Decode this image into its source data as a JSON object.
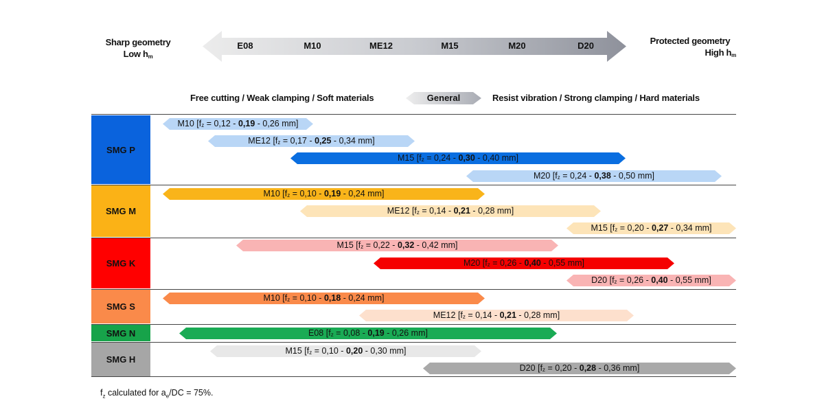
{
  "scale": {
    "left_label": [
      "Sharp geometry",
      "Low h",
      "m"
    ],
    "right_label": [
      "Protected geometry",
      "High h",
      "m"
    ],
    "geometries": [
      "E08",
      "M10",
      "ME12",
      "M15",
      "M20",
      "D20"
    ]
  },
  "application": {
    "left": "Free cutting / Weak clamping / Soft materials",
    "center": "General",
    "right": "Resist vibration / Strong clamping / Hard materials"
  },
  "groups": [
    {
      "label": "SMG P",
      "color": "#0a63dd",
      "bars": [
        {
          "name": "M10",
          "min": "0,12",
          "rec": "0,19",
          "max": "0,26",
          "color": "#b9d6f6"
        },
        {
          "name": "ME12",
          "min": "0,17",
          "rec": "0,25",
          "max": "0,34",
          "color": "#b9d6f6"
        },
        {
          "name": "M15",
          "min": "0,24",
          "rec": "0,30",
          "max": "0,40",
          "color": "#0a6ee0"
        },
        {
          "name": "M20",
          "min": "0,24",
          "rec": "0,38",
          "max": "0,50",
          "color": "#b9d6f6"
        }
      ]
    },
    {
      "label": "SMG M",
      "color": "#fbb216",
      "bars": [
        {
          "name": "M10",
          "min": "0,10",
          "rec": "0,19",
          "max": "0,24",
          "color": "#f9b41a"
        },
        {
          "name": "ME12",
          "min": "0,14",
          "rec": "0,21",
          "max": "0,28",
          "color": "#fde4b8"
        },
        {
          "name": "M15",
          "min": "0,20",
          "rec": "0,27",
          "max": "0,34",
          "color": "#fde4b8"
        }
      ]
    },
    {
      "label": "SMG K",
      "color": "#ff0000",
      "bars": [
        {
          "name": "M15",
          "min": "0,22",
          "rec": "0,32",
          "max": "0,42",
          "color": "#f9b4b4"
        },
        {
          "name": "M20",
          "min": "0,26",
          "rec": "0,40",
          "max": "0,55",
          "color": "#f50000"
        },
        {
          "name": "D20",
          "min": "0,26",
          "rec": "0,40",
          "max": "0,55",
          "color": "#f9b4b4"
        }
      ]
    },
    {
      "label": "SMG S",
      "color": "#fa8a4a",
      "bars": [
        {
          "name": "M10",
          "min": "0,10",
          "rec": "0,18",
          "max": "0,24",
          "color": "#fa8a4a"
        },
        {
          "name": "ME12",
          "min": "0,14",
          "rec": "0,21",
          "max": "0,28",
          "color": "#fde0cd"
        }
      ]
    },
    {
      "label": "SMG N",
      "color": "#17a34a",
      "bars": [
        {
          "name": "E08",
          "min": "0,08",
          "rec": "0,19",
          "max": "0,26",
          "color": "#1aab55"
        }
      ]
    },
    {
      "label": "SMG H",
      "color": "#a6a6a6",
      "bars": [
        {
          "name": "M15",
          "min": "0,10",
          "rec": "0,20",
          "max": "0,30",
          "color": "#e8e8e8"
        },
        {
          "name": "D20",
          "min": "0,20",
          "rec": "0,28",
          "max": "0,36",
          "color": "#a9a9a9"
        }
      ]
    }
  ],
  "bar_format": {
    "f": "f",
    "z": "z",
    "eq": " = ",
    "sep": " - ",
    "unit": " mm"
  },
  "footnote": [
    "f",
    "z",
    " calculated for a",
    "e",
    "/DC = 75%."
  ]
}
